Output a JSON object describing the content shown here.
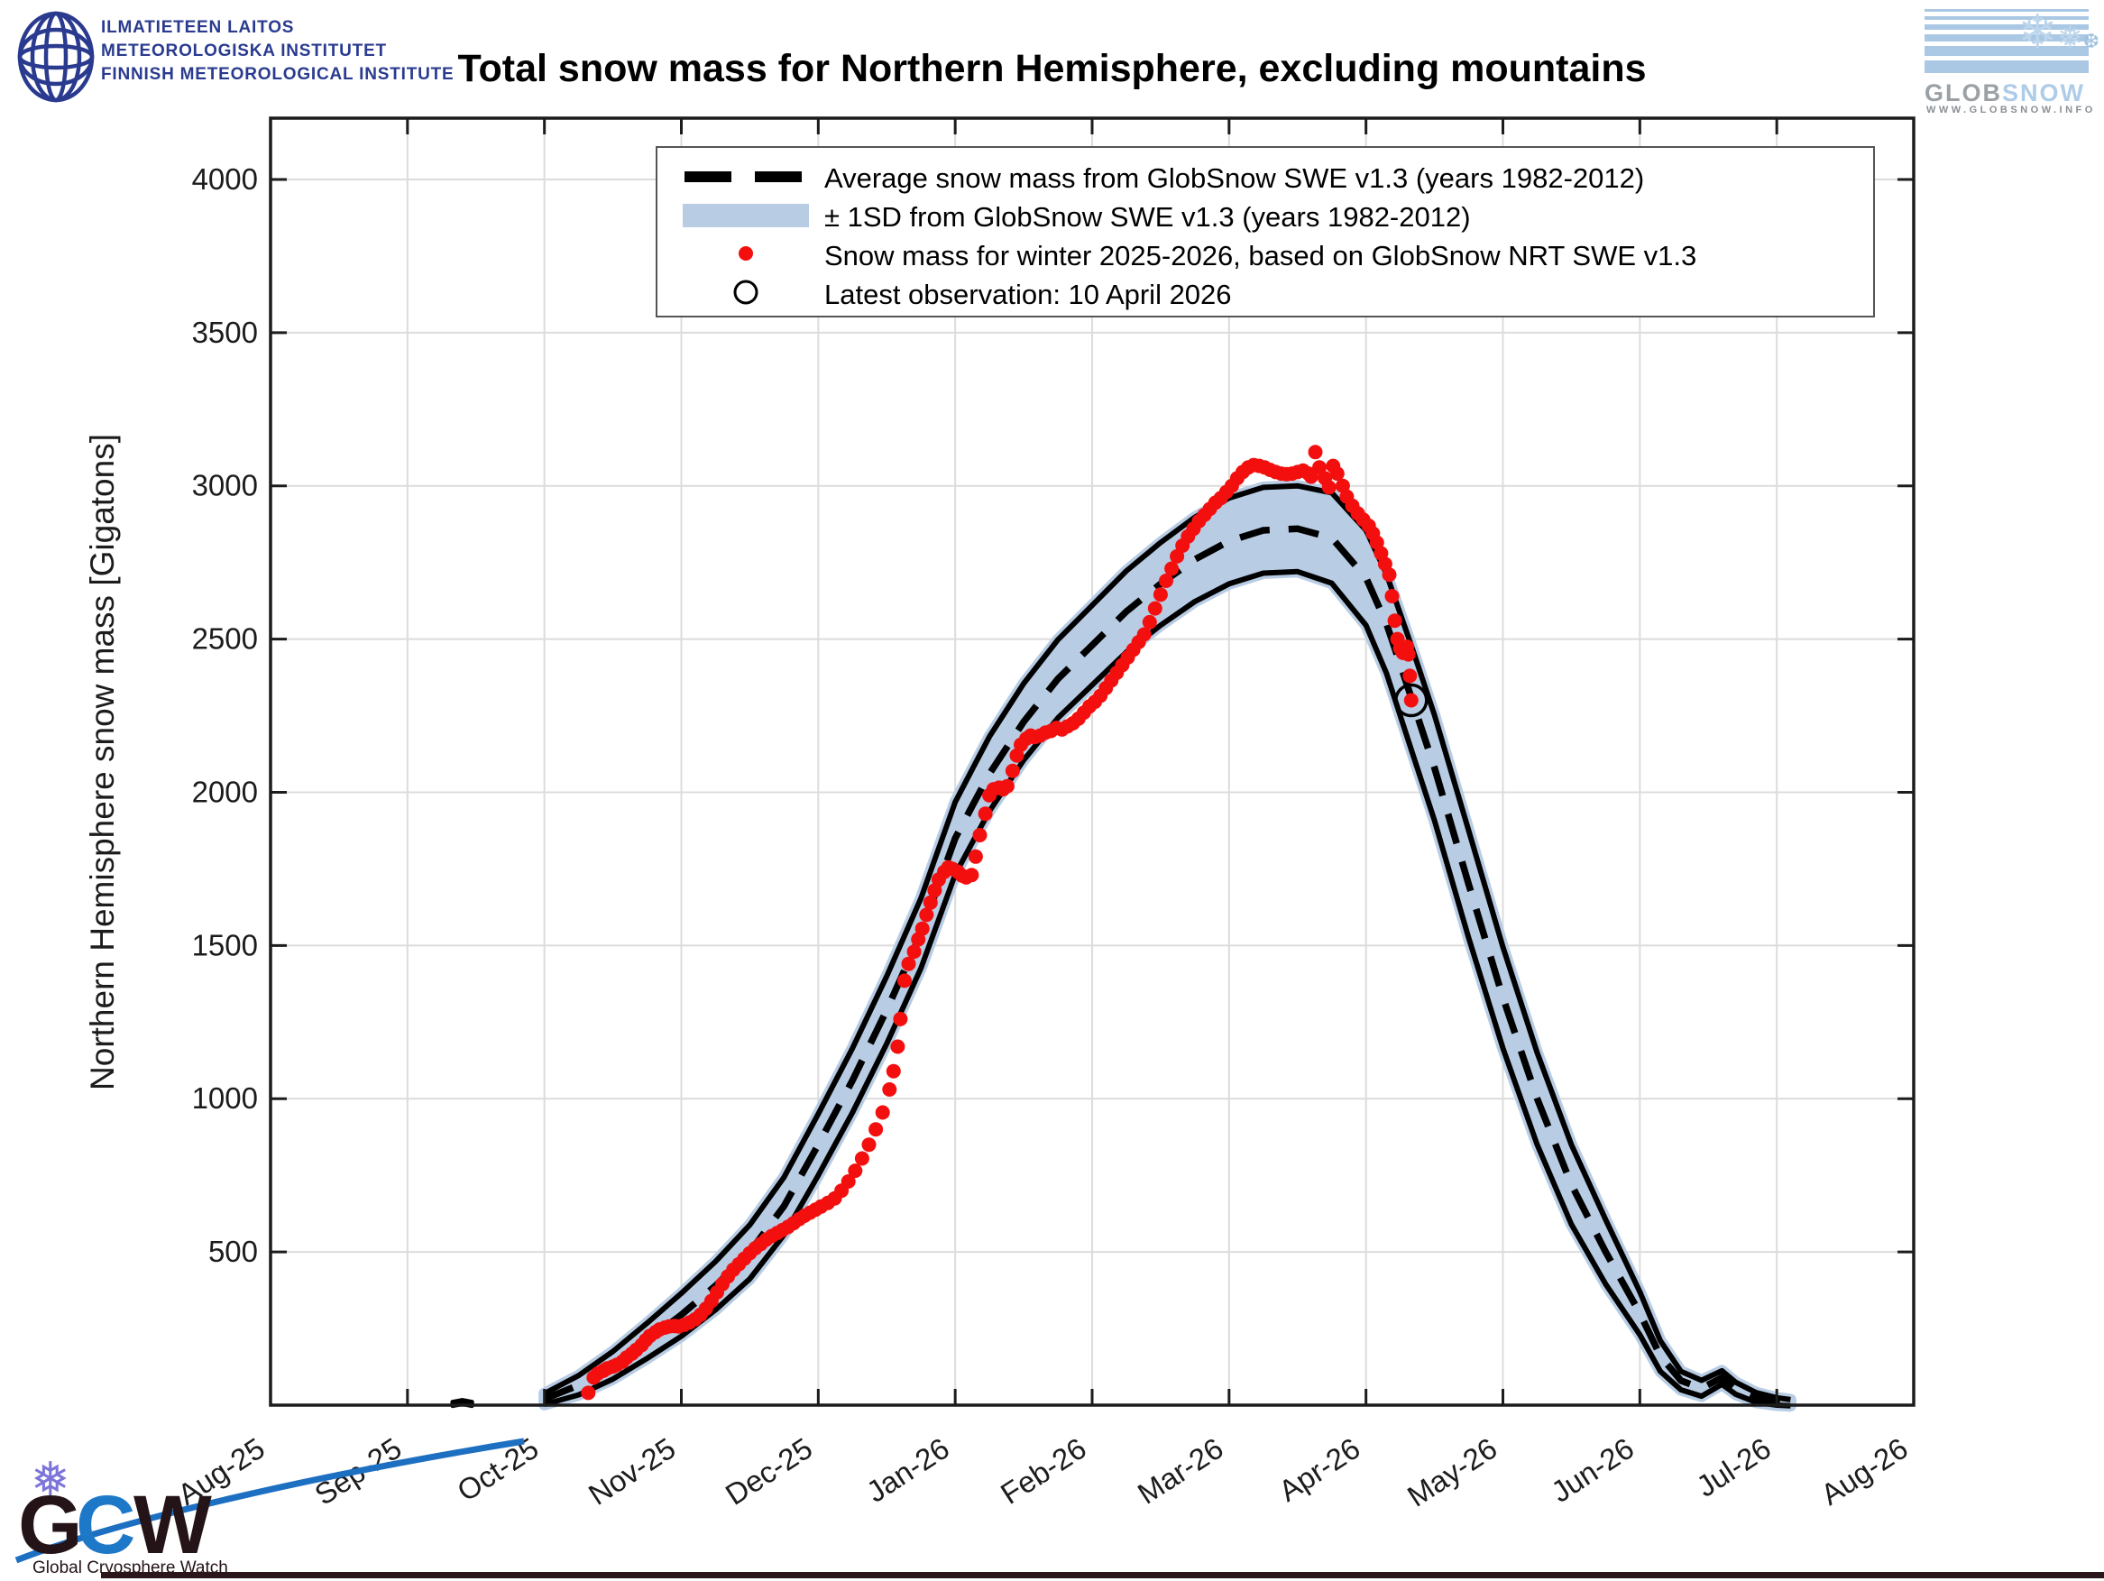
{
  "header": {
    "fmi": {
      "line1": "ILMATIETEEN LAITOS",
      "line2": "METEOROLOGISKA INSTITUTET",
      "line3": "FINNISH METEOROLOGICAL INSTITUTE"
    },
    "title": "Total snow mass for Northern Hemisphere, excluding mountains",
    "globsnow": {
      "glob": "GLOB",
      "snow": "SNOW",
      "url": "WWW.GLOBSNOW.INFO",
      "flakes": "❄ ❅ ❆"
    }
  },
  "footer": {
    "gcw": {
      "g": "G",
      "c": "C",
      "w": "W",
      "caption": "Global Cryosphere Watch"
    }
  },
  "chart_data": {
    "type": "line",
    "title": "Total snow mass for Northern Hemisphere, excluding mountains",
    "xlabel": "",
    "ylabel": "Northern Hemisphere snow mass [Gigatons]",
    "x_unit": "months since 1 Aug 2025 (one tick = one month, tick marks at month start)",
    "xlim": [
      0,
      12
    ],
    "ylim": [
      0,
      4200
    ],
    "grid": true,
    "x_ticks": {
      "positions": [
        0,
        1,
        2,
        3,
        4,
        5,
        6,
        7,
        8,
        9,
        10,
        11,
        12
      ],
      "labels": [
        "Aug-25",
        "Sep-25",
        "Oct-25",
        "Nov-25",
        "Dec-25",
        "Jan-26",
        "Feb-26",
        "Mar-26",
        "Apr-26",
        "May-26",
        "Jun-26",
        "Jul-26",
        "Aug-26"
      ]
    },
    "y_ticks": [
      500,
      1000,
      1500,
      2000,
      2500,
      3000,
      3500,
      4000
    ],
    "legend": {
      "position": "inside-top-left",
      "entries": [
        "Average snow mass from GlobSnow SWE v1.3 (years 1982-2012)",
        "± 1SD from GlobSnow SWE v1.3 (years 1982-2012)",
        "Snow mass for winter 2025-2026, based on GlobSnow NRT SWE v1.3",
        "Latest observation: 10 April 2026"
      ]
    },
    "colors": {
      "band": "#b8cce4",
      "mean_line": "#000000",
      "envelope_line": "#000000",
      "observations": "#f40f0f",
      "frame": "#1c1c1c",
      "grid": "#dcdcdc"
    },
    "climatology_sep_blip": {
      "mean": [
        [
          1.33,
          4
        ],
        [
          1.4,
          10
        ],
        [
          1.47,
          4
        ]
      ],
      "halfwidth": 6
    },
    "climatology_mean": [
      [
        2.0,
        20
      ],
      [
        2.25,
        65
      ],
      [
        2.5,
        130
      ],
      [
        2.75,
        210
      ],
      [
        3.0,
        295
      ],
      [
        3.25,
        390
      ],
      [
        3.5,
        500
      ],
      [
        3.75,
        650
      ],
      [
        4.0,
        850
      ],
      [
        4.25,
        1060
      ],
      [
        4.5,
        1290
      ],
      [
        4.75,
        1540
      ],
      [
        5.0,
        1850
      ],
      [
        5.13,
        1960
      ],
      [
        5.25,
        2060
      ],
      [
        5.5,
        2230
      ],
      [
        5.75,
        2370
      ],
      [
        6.0,
        2480
      ],
      [
        6.25,
        2590
      ],
      [
        6.5,
        2680
      ],
      [
        6.75,
        2760
      ],
      [
        7.0,
        2820
      ],
      [
        7.25,
        2855
      ],
      [
        7.5,
        2860
      ],
      [
        7.75,
        2830
      ],
      [
        8.0,
        2700
      ],
      [
        8.15,
        2550
      ],
      [
        8.33,
        2310
      ],
      [
        8.5,
        2080
      ],
      [
        8.75,
        1700
      ],
      [
        9.0,
        1330
      ],
      [
        9.25,
        1000
      ],
      [
        9.5,
        720
      ],
      [
        9.75,
        500
      ],
      [
        10.0,
        300
      ],
      [
        10.15,
        160
      ],
      [
        10.3,
        80
      ],
      [
        10.45,
        55
      ],
      [
        10.6,
        90
      ],
      [
        10.7,
        55
      ],
      [
        10.85,
        25
      ],
      [
        11.0,
        12
      ],
      [
        11.1,
        8
      ]
    ],
    "climatology_halfwidth": [
      [
        2.0,
        18
      ],
      [
        2.5,
        45
      ],
      [
        3.0,
        70
      ],
      [
        3.5,
        88
      ],
      [
        4.0,
        100
      ],
      [
        4.5,
        110
      ],
      [
        5.0,
        118
      ],
      [
        5.5,
        125
      ],
      [
        6.0,
        130
      ],
      [
        6.5,
        135
      ],
      [
        7.0,
        140
      ],
      [
        7.5,
        140
      ],
      [
        8.0,
        155
      ],
      [
        8.33,
        170
      ],
      [
        8.75,
        175
      ],
      [
        9.0,
        165
      ],
      [
        9.25,
        150
      ],
      [
        9.5,
        130
      ],
      [
        9.75,
        105
      ],
      [
        10.0,
        70
      ],
      [
        10.3,
        30
      ],
      [
        10.6,
        22
      ],
      [
        11.0,
        12
      ],
      [
        11.1,
        10
      ]
    ],
    "winter_2025_2026": [
      [
        2.32,
        40
      ],
      [
        2.36,
        90
      ],
      [
        2.39,
        103
      ],
      [
        2.43,
        112
      ],
      [
        2.46,
        120
      ],
      [
        2.5,
        126
      ],
      [
        2.53,
        132
      ],
      [
        2.57,
        142
      ],
      [
        2.6,
        155
      ],
      [
        2.64,
        168
      ],
      [
        2.67,
        180
      ],
      [
        2.71,
        196
      ],
      [
        2.74,
        212
      ],
      [
        2.77,
        226
      ],
      [
        2.81,
        238
      ],
      [
        2.84,
        247
      ],
      [
        2.88,
        253
      ],
      [
        2.91,
        257
      ],
      [
        2.95,
        258
      ],
      [
        2.98,
        257
      ],
      [
        3.02,
        262
      ],
      [
        3.06,
        270
      ],
      [
        3.1,
        280
      ],
      [
        3.14,
        295
      ],
      [
        3.18,
        315
      ],
      [
        3.22,
        340
      ],
      [
        3.26,
        368
      ],
      [
        3.3,
        395
      ],
      [
        3.34,
        420
      ],
      [
        3.38,
        442
      ],
      [
        3.42,
        460
      ],
      [
        3.46,
        478
      ],
      [
        3.5,
        496
      ],
      [
        3.54,
        512
      ],
      [
        3.58,
        526
      ],
      [
        3.62,
        540
      ],
      [
        3.66,
        552
      ],
      [
        3.7,
        562
      ],
      [
        3.74,
        572
      ],
      [
        3.78,
        582
      ],
      [
        3.82,
        594
      ],
      [
        3.86,
        607
      ],
      [
        3.9,
        618
      ],
      [
        3.94,
        628
      ],
      [
        3.98,
        638
      ],
      [
        4.02,
        648
      ],
      [
        4.07,
        660
      ],
      [
        4.12,
        675
      ],
      [
        4.17,
        700
      ],
      [
        4.22,
        730
      ],
      [
        4.27,
        765
      ],
      [
        4.32,
        805
      ],
      [
        4.37,
        850
      ],
      [
        4.42,
        900
      ],
      [
        4.47,
        955
      ],
      [
        4.52,
        1030
      ],
      [
        4.55,
        1090
      ],
      [
        4.58,
        1170
      ],
      [
        4.6,
        1260
      ],
      [
        4.63,
        1385
      ],
      [
        4.66,
        1440
      ],
      [
        4.7,
        1480
      ],
      [
        4.73,
        1520
      ],
      [
        4.76,
        1555
      ],
      [
        4.79,
        1600
      ],
      [
        4.82,
        1640
      ],
      [
        4.85,
        1680
      ],
      [
        4.88,
        1715
      ],
      [
        4.92,
        1740
      ],
      [
        4.95,
        1755
      ],
      [
        4.98,
        1750
      ],
      [
        5.02,
        1740
      ],
      [
        5.05,
        1728
      ],
      [
        5.08,
        1722
      ],
      [
        5.12,
        1730
      ],
      [
        5.15,
        1790
      ],
      [
        5.18,
        1860
      ],
      [
        5.22,
        1930
      ],
      [
        5.25,
        1990
      ],
      [
        5.28,
        2010
      ],
      [
        5.32,
        2015
      ],
      [
        5.35,
        2010
      ],
      [
        5.38,
        2020
      ],
      [
        5.42,
        2070
      ],
      [
        5.45,
        2120
      ],
      [
        5.48,
        2155
      ],
      [
        5.52,
        2175
      ],
      [
        5.55,
        2185
      ],
      [
        5.58,
        2180
      ],
      [
        5.62,
        2185
      ],
      [
        5.66,
        2195
      ],
      [
        5.7,
        2200
      ],
      [
        5.74,
        2210
      ],
      [
        5.78,
        2205
      ],
      [
        5.82,
        2215
      ],
      [
        5.86,
        2225
      ],
      [
        5.9,
        2240
      ],
      [
        5.94,
        2260
      ],
      [
        5.98,
        2280
      ],
      [
        6.02,
        2295
      ],
      [
        6.06,
        2315
      ],
      [
        6.1,
        2340
      ],
      [
        6.14,
        2365
      ],
      [
        6.18,
        2390
      ],
      [
        6.22,
        2415
      ],
      [
        6.26,
        2440
      ],
      [
        6.3,
        2465
      ],
      [
        6.34,
        2490
      ],
      [
        6.38,
        2515
      ],
      [
        6.42,
        2555
      ],
      [
        6.46,
        2600
      ],
      [
        6.5,
        2645
      ],
      [
        6.54,
        2690
      ],
      [
        6.58,
        2730
      ],
      [
        6.62,
        2770
      ],
      [
        6.66,
        2805
      ],
      [
        6.7,
        2835
      ],
      [
        6.74,
        2860
      ],
      [
        6.78,
        2885
      ],
      [
        6.82,
        2905
      ],
      [
        6.86,
        2925
      ],
      [
        6.9,
        2945
      ],
      [
        6.94,
        2960
      ],
      [
        6.98,
        2980
      ],
      [
        7.02,
        3000
      ],
      [
        7.06,
        3025
      ],
      [
        7.1,
        3045
      ],
      [
        7.14,
        3060
      ],
      [
        7.18,
        3068
      ],
      [
        7.22,
        3065
      ],
      [
        7.26,
        3060
      ],
      [
        7.3,
        3052
      ],
      [
        7.34,
        3045
      ],
      [
        7.38,
        3040
      ],
      [
        7.42,
        3038
      ],
      [
        7.46,
        3040
      ],
      [
        7.5,
        3045
      ],
      [
        7.54,
        3050
      ],
      [
        7.58,
        3040
      ],
      [
        7.6,
        3030
      ],
      [
        7.63,
        3110
      ],
      [
        7.66,
        3060
      ],
      [
        7.7,
        3025
      ],
      [
        7.73,
        2995
      ],
      [
        7.76,
        3065
      ],
      [
        7.79,
        3040
      ],
      [
        7.83,
        3000
      ],
      [
        7.86,
        2965
      ],
      [
        7.9,
        2935
      ],
      [
        7.94,
        2910
      ],
      [
        7.98,
        2890
      ],
      [
        8.02,
        2870
      ],
      [
        8.05,
        2845
      ],
      [
        8.08,
        2815
      ],
      [
        8.11,
        2780
      ],
      [
        8.14,
        2745
      ],
      [
        8.17,
        2710
      ],
      [
        8.19,
        2640
      ],
      [
        8.21,
        2560
      ],
      [
        8.23,
        2500
      ],
      [
        8.25,
        2470
      ],
      [
        8.27,
        2455
      ],
      [
        8.29,
        2467
      ],
      [
        8.3,
        2475
      ],
      [
        8.31,
        2450
      ],
      [
        8.32,
        2380
      ],
      [
        8.33,
        2300
      ]
    ],
    "latest_observation": {
      "x": 8.33,
      "value": 2300,
      "date_label": "10 April 2026"
    }
  }
}
